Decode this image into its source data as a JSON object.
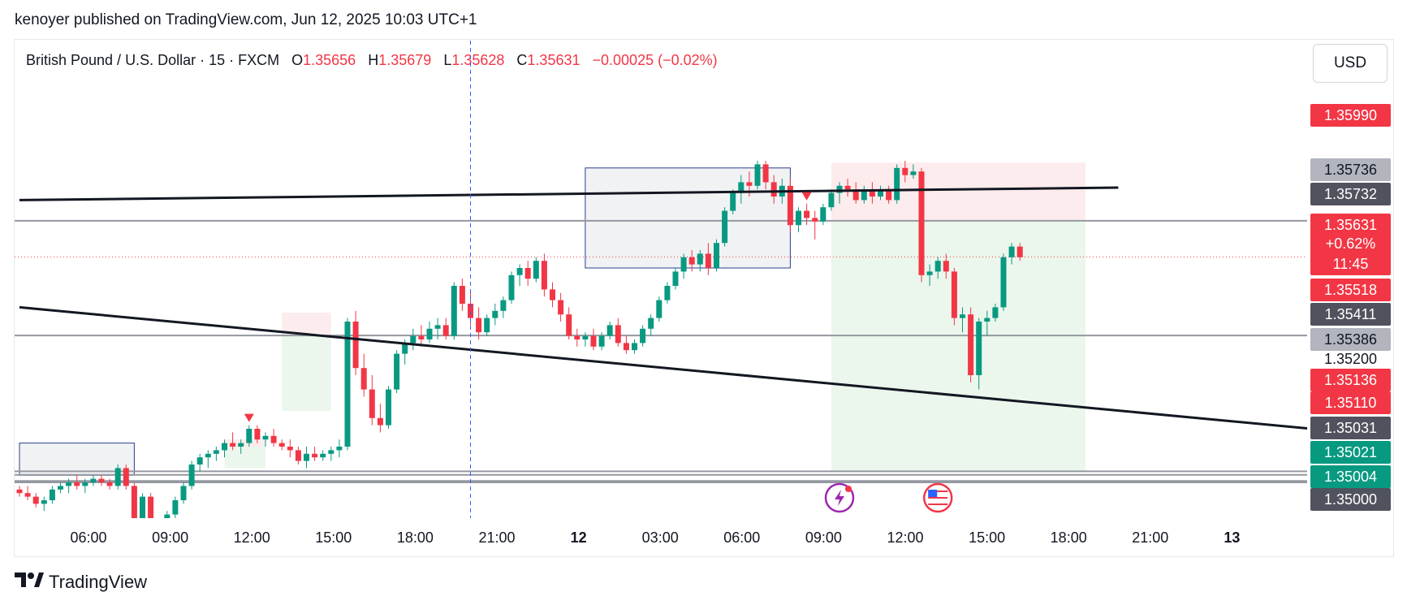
{
  "publisher": "kenoyer published on TradingView.com, Jun 12, 2025 10:03 UTC+1",
  "legend": {
    "symbol": "British Pound / U.S. Dollar · 15 · FXCM",
    "o_label": "O",
    "o": "1.35656",
    "h_label": "H",
    "h": "1.35679",
    "l_label": "L",
    "l": "1.35628",
    "c_label": "C",
    "c": "1.35631",
    "change": "−0.00025 (−0.02%)"
  },
  "currency": "USD",
  "brand": "TradingView",
  "colors": {
    "up": "#089981",
    "down": "#f23645",
    "trendline": "#131722",
    "hline": "#9598a1",
    "zone_box": "#2a3f8f",
    "profit_zone": "#e8f5e9",
    "loss_zone": "#fde9ea"
  },
  "chart_data": {
    "type": "candlestick",
    "series": "GBP/USD 15 min",
    "x_ticks": [
      "06:00",
      "09:00",
      "12:00",
      "15:00",
      "18:00",
      "21:00",
      "12",
      "03:00",
      "06:00",
      "09:00",
      "12:00",
      "15:00",
      "18:00",
      "21:00",
      "13"
    ],
    "y_range": [
      1.349,
      1.361
    ],
    "price_labels": [
      {
        "text": "1.35990",
        "value": 1.3599,
        "style": "red"
      },
      {
        "text": "1.35736",
        "value": 1.35736,
        "style": "gray"
      },
      {
        "text": "1.35732",
        "value": 1.35732,
        "style": "dark"
      },
      {
        "text": "1.35631",
        "value": 1.35631,
        "style": "current"
      },
      {
        "text": "+0.62%",
        "value": null,
        "style": "current-sub"
      },
      {
        "text": "11:45",
        "value": null,
        "style": "current-sub"
      },
      {
        "text": "1.35518",
        "value": 1.35518,
        "style": "red"
      },
      {
        "text": "1.35411",
        "value": 1.35411,
        "style": "dark"
      },
      {
        "text": "1.35386",
        "value": 1.35386,
        "style": "gray"
      },
      {
        "text": "1.35200",
        "value": 1.352,
        "style": "plain"
      },
      {
        "text": "1.35136",
        "value": 1.35136,
        "style": "red"
      },
      {
        "text": "1.35110",
        "value": 1.3511,
        "style": "red"
      },
      {
        "text": "1.35031",
        "value": 1.35031,
        "style": "dark"
      },
      {
        "text": "1.35021",
        "value": 1.35021,
        "style": "green"
      },
      {
        "text": "1.35004",
        "value": 1.35004,
        "style": "green"
      },
      {
        "text": "1.35000",
        "value": 1.35,
        "style": "dark"
      }
    ],
    "horizontal_lines": [
      1.35732,
      1.35411,
      1.35031,
      1.35021,
      1.35004,
      1.35
    ],
    "current_price": 1.35631,
    "trendlines": [
      {
        "from": [
          0,
          1.3579
        ],
        "to": [
          134,
          1.35825
        ]
      },
      {
        "from": [
          0,
          1.3549
        ],
        "to": [
          159,
          1.35147
        ]
      }
    ],
    "candles": [
      [
        1.3498,
        1.3499,
        1.3496,
        1.3497
      ],
      [
        1.3497,
        1.3499,
        1.3495,
        1.3496
      ],
      [
        1.3496,
        1.3497,
        1.3493,
        1.3494
      ],
      [
        1.3494,
        1.3496,
        1.3492,
        1.3495
      ],
      [
        1.3495,
        1.3499,
        1.3494,
        1.3498
      ],
      [
        1.3498,
        1.35,
        1.3497,
        1.3499
      ],
      [
        1.3499,
        1.3501,
        1.3497,
        1.35
      ],
      [
        1.35,
        1.3502,
        1.3498,
        1.3499
      ],
      [
        1.3499,
        1.3501,
        1.3497,
        1.35
      ],
      [
        1.35,
        1.3502,
        1.3499,
        1.3501
      ],
      [
        1.3501,
        1.3502,
        1.3499,
        1.35
      ],
      [
        1.35,
        1.3501,
        1.3498,
        1.3499
      ],
      [
        1.3499,
        1.3505,
        1.3498,
        1.3504
      ],
      [
        1.3504,
        1.3505,
        1.3498,
        1.3499
      ],
      [
        1.3499,
        1.35,
        1.3486,
        1.3488
      ],
      [
        1.3488,
        1.3497,
        1.3487,
        1.3496
      ],
      [
        1.3496,
        1.3497,
        1.3487,
        1.3488
      ],
      [
        1.3488,
        1.349,
        1.3484,
        1.3486
      ],
      [
        1.3486,
        1.3492,
        1.3485,
        1.3491
      ],
      [
        1.3491,
        1.3496,
        1.349,
        1.3495
      ],
      [
        1.3495,
        1.35,
        1.3494,
        1.3499
      ],
      [
        1.3499,
        1.3506,
        1.3498,
        1.3505
      ],
      [
        1.3505,
        1.3508,
        1.3503,
        1.3507
      ],
      [
        1.3507,
        1.3509,
        1.3504,
        1.3508
      ],
      [
        1.3508,
        1.351,
        1.3506,
        1.3509
      ],
      [
        1.3509,
        1.3512,
        1.3507,
        1.3511
      ],
      [
        1.3511,
        1.3514,
        1.3509,
        1.351
      ],
      [
        1.351,
        1.3512,
        1.3508,
        1.3511
      ],
      [
        1.3511,
        1.3516,
        1.351,
        1.3515
      ],
      [
        1.3515,
        1.3516,
        1.3511,
        1.3512
      ],
      [
        1.3512,
        1.3514,
        1.351,
        1.3513
      ],
      [
        1.3513,
        1.3515,
        1.351,
        1.3511
      ],
      [
        1.3511,
        1.3512,
        1.3509,
        1.351
      ],
      [
        1.351,
        1.3512,
        1.3507,
        1.3509
      ],
      [
        1.3509,
        1.351,
        1.3505,
        1.3506
      ],
      [
        1.3506,
        1.351,
        1.3504,
        1.3508
      ],
      [
        1.3508,
        1.351,
        1.3506,
        1.3507
      ],
      [
        1.3507,
        1.3509,
        1.3506,
        1.3508
      ],
      [
        1.3508,
        1.351,
        1.3506,
        1.3509
      ],
      [
        1.3509,
        1.3512,
        1.3507,
        1.351
      ],
      [
        1.351,
        1.3546,
        1.3509,
        1.3545
      ],
      [
        1.3545,
        1.3548,
        1.353,
        1.3532
      ],
      [
        1.3532,
        1.3536,
        1.3524,
        1.3526
      ],
      [
        1.3526,
        1.353,
        1.3516,
        1.3518
      ],
      [
        1.3518,
        1.3522,
        1.3514,
        1.3516
      ],
      [
        1.3516,
        1.3527,
        1.3515,
        1.3526
      ],
      [
        1.3526,
        1.3537,
        1.3525,
        1.3536
      ],
      [
        1.3536,
        1.354,
        1.3533,
        1.3539
      ],
      [
        1.3539,
        1.3543,
        1.3537,
        1.3541
      ],
      [
        1.3541,
        1.3544,
        1.3538,
        1.354
      ],
      [
        1.354,
        1.3545,
        1.3539,
        1.3543
      ],
      [
        1.3543,
        1.3546,
        1.354,
        1.3544
      ],
      [
        1.3544,
        1.3546,
        1.354,
        1.3541
      ],
      [
        1.3541,
        1.3556,
        1.354,
        1.3555
      ],
      [
        1.3555,
        1.3557,
        1.3548,
        1.355
      ],
      [
        1.355,
        1.3553,
        1.3544,
        1.3546
      ],
      [
        1.3546,
        1.3549,
        1.354,
        1.3542
      ],
      [
        1.3542,
        1.3547,
        1.3541,
        1.3546
      ],
      [
        1.3546,
        1.355,
        1.3544,
        1.3548
      ],
      [
        1.3548,
        1.3552,
        1.3546,
        1.3551
      ],
      [
        1.3551,
        1.3559,
        1.355,
        1.3558
      ],
      [
        1.3558,
        1.3561,
        1.3555,
        1.356
      ],
      [
        1.356,
        1.3562,
        1.3555,
        1.3557
      ],
      [
        1.3557,
        1.3563,
        1.3556,
        1.3562
      ],
      [
        1.3562,
        1.3564,
        1.3552,
        1.3554
      ],
      [
        1.3554,
        1.3556,
        1.3549,
        1.3551
      ],
      [
        1.3551,
        1.3553,
        1.3545,
        1.3547
      ],
      [
        1.3547,
        1.3549,
        1.354,
        1.3541
      ],
      [
        1.3541,
        1.3543,
        1.3538,
        1.354
      ],
      [
        1.354,
        1.3542,
        1.3538,
        1.3541
      ],
      [
        1.3541,
        1.3543,
        1.3537,
        1.3538
      ],
      [
        1.3538,
        1.3542,
        1.3537,
        1.3541
      ],
      [
        1.3541,
        1.3545,
        1.354,
        1.3544
      ],
      [
        1.3544,
        1.3546,
        1.3538,
        1.3539
      ],
      [
        1.3539,
        1.3541,
        1.3536,
        1.3537
      ],
      [
        1.3537,
        1.354,
        1.3536,
        1.3539
      ],
      [
        1.3539,
        1.3544,
        1.3538,
        1.3543
      ],
      [
        1.3543,
        1.3547,
        1.3541,
        1.3546
      ],
      [
        1.3546,
        1.3552,
        1.3545,
        1.3551
      ],
      [
        1.3551,
        1.3556,
        1.355,
        1.3555
      ],
      [
        1.3555,
        1.356,
        1.3554,
        1.3559
      ],
      [
        1.3559,
        1.3564,
        1.3557,
        1.3563
      ],
      [
        1.3563,
        1.3565,
        1.3559,
        1.3561
      ],
      [
        1.3561,
        1.3565,
        1.3559,
        1.3564
      ],
      [
        1.3564,
        1.3567,
        1.3558,
        1.356
      ],
      [
        1.356,
        1.3568,
        1.3559,
        1.3567
      ],
      [
        1.3567,
        1.3577,
        1.3566,
        1.3576
      ],
      [
        1.3576,
        1.3582,
        1.3575,
        1.3581
      ],
      [
        1.3581,
        1.3586,
        1.3578,
        1.3584
      ],
      [
        1.3584,
        1.3587,
        1.358,
        1.3583
      ],
      [
        1.3583,
        1.359,
        1.3582,
        1.3589
      ],
      [
        1.3589,
        1.359,
        1.3582,
        1.3584
      ],
      [
        1.3584,
        1.3586,
        1.3578,
        1.358
      ],
      [
        1.358,
        1.3585,
        1.3578,
        1.3583
      ],
      [
        1.3583,
        1.3585,
        1.357,
        1.3572
      ],
      [
        1.3572,
        1.3577,
        1.357,
        1.3576
      ],
      [
        1.3576,
        1.3578,
        1.3572,
        1.3574
      ],
      [
        1.3574,
        1.3576,
        1.3568,
        1.3573
      ],
      [
        1.3573,
        1.3578,
        1.3572,
        1.3577
      ],
      [
        1.3577,
        1.3582,
        1.3576,
        1.3581
      ],
      [
        1.3581,
        1.3584,
        1.3578,
        1.3583
      ],
      [
        1.3583,
        1.3585,
        1.358,
        1.3582
      ],
      [
        1.3582,
        1.3584,
        1.3578,
        1.3579
      ],
      [
        1.3579,
        1.3583,
        1.3578,
        1.3582
      ],
      [
        1.3582,
        1.3584,
        1.3578,
        1.358
      ],
      [
        1.358,
        1.3583,
        1.3579,
        1.3582
      ],
      [
        1.3582,
        1.3583,
        1.3578,
        1.3579
      ],
      [
        1.3579,
        1.3589,
        1.3578,
        1.3588
      ],
      [
        1.3588,
        1.359,
        1.3584,
        1.3586
      ],
      [
        1.3586,
        1.3589,
        1.3585,
        1.3587
      ],
      [
        1.3587,
        1.3588,
        1.3556,
        1.3558
      ],
      [
        1.3558,
        1.3561,
        1.3555,
        1.3559
      ],
      [
        1.3559,
        1.3563,
        1.3557,
        1.3562
      ],
      [
        1.3562,
        1.3564,
        1.3557,
        1.3559
      ],
      [
        1.3559,
        1.356,
        1.3544,
        1.3546
      ],
      [
        1.3546,
        1.3549,
        1.3542,
        1.3547
      ],
      [
        1.3547,
        1.3549,
        1.3528,
        1.353
      ],
      [
        1.353,
        1.3546,
        1.3526,
        1.3545
      ],
      [
        1.3545,
        1.3548,
        1.3541,
        1.3546
      ],
      [
        1.3546,
        1.355,
        1.3545,
        1.3549
      ],
      [
        1.3549,
        1.3564,
        1.3548,
        1.3563
      ],
      [
        1.3563,
        1.3567,
        1.3561,
        1.3566
      ],
      [
        1.3566,
        1.3567,
        1.3562,
        1.3563
      ]
    ],
    "zones": [
      {
        "kind": "box",
        "x0": 0,
        "x1": 14,
        "y0": 1.3502,
        "y1": 1.3511
      },
      {
        "kind": "box",
        "x0": 69,
        "x1": 94,
        "y0": 1.356,
        "y1": 1.3588
      },
      {
        "kind": "loss",
        "x0": 25,
        "x1": 30,
        "y0": 1.351,
        "y1": 1.3512
      },
      {
        "kind": "profit",
        "x0": 25,
        "x1": 30,
        "y0": 1.3504,
        "y1": 1.351
      },
      {
        "kind": "loss",
        "x0": 32,
        "x1": 38,
        "y0": 1.3541,
        "y1": 1.35475
      },
      {
        "kind": "profit",
        "x0": 32,
        "x1": 38,
        "y0": 1.352,
        "y1": 1.3541
      },
      {
        "kind": "loss",
        "x0": 99,
        "x1": 130,
        "y0": 1.35732,
        "y1": 1.35895
      },
      {
        "kind": "profit",
        "x0": 99,
        "x1": 130,
        "y0": 1.35031,
        "y1": 1.35732
      }
    ],
    "sell_markers": [
      28,
      96
    ],
    "event_icons": [
      {
        "name": "lightning-event",
        "x": 100
      },
      {
        "name": "us-flag-event",
        "x": 112
      }
    ]
  }
}
